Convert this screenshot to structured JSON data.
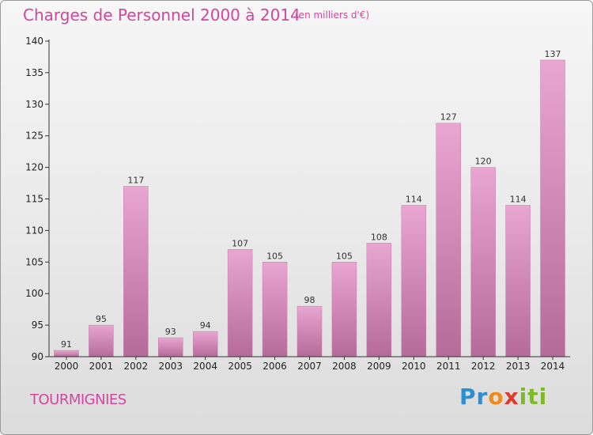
{
  "header": {
    "title": "Charges de Personnel 2000 à 2014",
    "subtitle": "(en milliers d'€)"
  },
  "footer": {
    "location": "TOURMIGNIES",
    "brand": "Proxiti"
  },
  "colors": {
    "title": "#d2479d",
    "bar_top": "#e8a6d0",
    "bar_bottom": "#b56b98",
    "axis": "#333333"
  },
  "chart_data": {
    "type": "bar",
    "title": "Charges de Personnel 2000 à 2014",
    "subtitle": "(en milliers d'€)",
    "xlabel": "",
    "ylabel": "",
    "categories": [
      "2000",
      "2001",
      "2002",
      "2003",
      "2004",
      "2005",
      "2006",
      "2007",
      "2008",
      "2009",
      "2010",
      "2011",
      "2012",
      "2013",
      "2014"
    ],
    "values": [
      91,
      95,
      117,
      93,
      94,
      107,
      105,
      98,
      105,
      108,
      114,
      127,
      120,
      114,
      137
    ],
    "ylim": [
      90,
      140
    ],
    "yticks": [
      90,
      95,
      100,
      105,
      110,
      115,
      120,
      125,
      130,
      135,
      140
    ],
    "grid": false,
    "legend": "none",
    "data_labels": true
  }
}
